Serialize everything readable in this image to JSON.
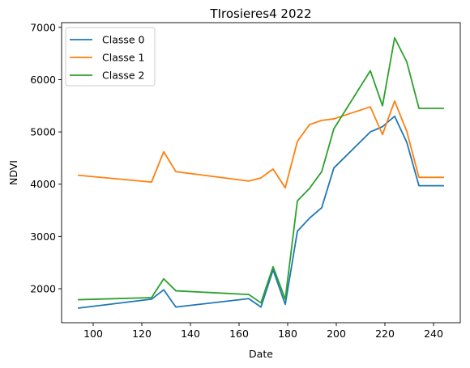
{
  "chart_data": {
    "type": "line",
    "title": "TIrosieres4 2022",
    "xlabel": "Date",
    "ylabel": "NDVI",
    "xlim": [
      87,
      251
    ],
    "ylim": [
      1350,
      7090
    ],
    "xticks": [
      100,
      120,
      140,
      160,
      180,
      200,
      220,
      240
    ],
    "yticks": [
      2000,
      3000,
      4000,
      5000,
      6000,
      7000
    ],
    "grid": false,
    "legend_position": "top-left",
    "x": [
      94,
      124,
      129,
      134,
      164,
      169,
      174,
      179,
      184,
      189,
      194,
      199,
      214,
      219,
      224,
      229,
      234,
      244
    ],
    "series": [
      {
        "name": "Classe 0",
        "color": "#1f77b4",
        "values": [
          1630,
          1800,
          1980,
          1650,
          1810,
          1650,
          2360,
          1700,
          3100,
          3350,
          3550,
          4310,
          5000,
          5100,
          5300,
          4800,
          3970,
          3970
        ]
      },
      {
        "name": "Classe 1",
        "color": "#ff7f0e",
        "values": [
          4170,
          4040,
          4620,
          4240,
          4060,
          4120,
          4290,
          3930,
          4820,
          5140,
          5220,
          5250,
          5480,
          4950,
          5590,
          5010,
          4130,
          4130
        ]
      },
      {
        "name": "Classe 2",
        "color": "#2ca02c",
        "values": [
          1790,
          1830,
          2190,
          1960,
          1890,
          1730,
          2420,
          1800,
          3680,
          3920,
          4240,
          5060,
          6170,
          5500,
          6800,
          6340,
          5450,
          5450
        ]
      }
    ]
  }
}
